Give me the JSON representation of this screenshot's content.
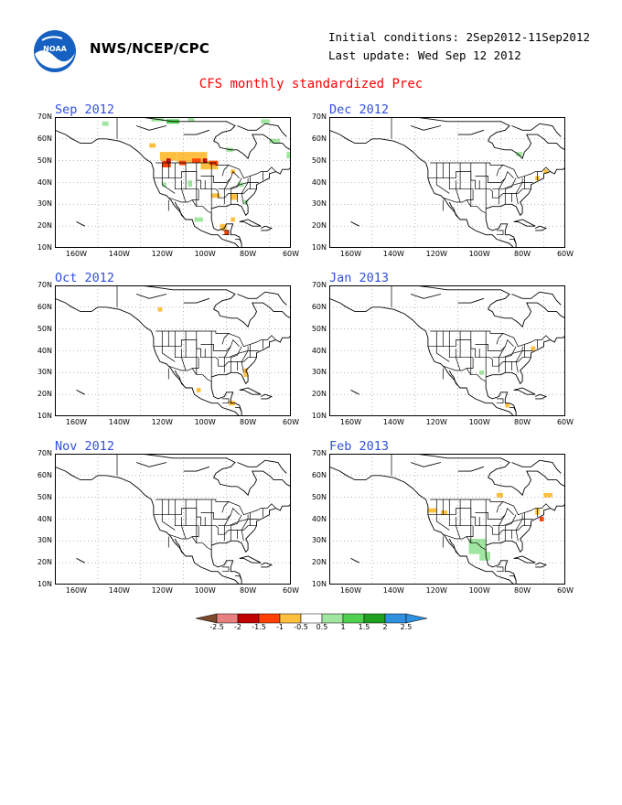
{
  "header": {
    "org": "NWS/NCEP/CPC",
    "initial_conditions": "Initial conditions: 2Sep2012-11Sep2012",
    "last_update": "Last update: Wed Sep 12 2012",
    "title": "CFS monthly standardized Prec",
    "logo_icon": "noaa-logo-icon"
  },
  "axes": {
    "y_ticks": [
      "70N",
      "60N",
      "50N",
      "40N",
      "30N",
      "20N",
      "10N"
    ],
    "x_ticks": [
      "160W",
      "140W",
      "120W",
      "100W",
      "80W",
      "60W"
    ]
  },
  "panels": [
    {
      "id": "sep",
      "title": "Sep 2012",
      "anomalies": [
        {
          "lon": -148,
          "lat": 66,
          "w": 3,
          "h": 2,
          "color": "#a0e6a0"
        },
        {
          "lon": -125,
          "lat": 68,
          "w": 6,
          "h": 2,
          "color": "#a0e6a0"
        },
        {
          "lon": -118,
          "lat": 67,
          "w": 6,
          "h": 2,
          "color": "#50d050"
        },
        {
          "lon": -108,
          "lat": 68,
          "w": 3,
          "h": 2,
          "color": "#a0e6a0"
        },
        {
          "lon": -74,
          "lat": 67,
          "w": 4,
          "h": 2,
          "color": "#a0e6a0"
        },
        {
          "lon": -70,
          "lat": 58,
          "w": 5,
          "h": 2,
          "color": "#a0e6a0"
        },
        {
          "lon": -62,
          "lat": 51,
          "w": 3,
          "h": 3,
          "color": "#a0e6a0"
        },
        {
          "lon": -90,
          "lat": 54,
          "w": 3,
          "h": 2,
          "color": "#a0e6a0"
        },
        {
          "lon": -126,
          "lat": 56,
          "w": 3,
          "h": 2,
          "color": "#ffc040"
        },
        {
          "lon": -121,
          "lat": 50,
          "w": 8,
          "h": 4,
          "color": "#ffc040"
        },
        {
          "lon": -113,
          "lat": 49,
          "w": 14,
          "h": 5,
          "color": "#ffc040"
        },
        {
          "lon": -102,
          "lat": 46,
          "w": 8,
          "h": 4,
          "color": "#ffc040"
        },
        {
          "lon": -120,
          "lat": 47,
          "w": 4,
          "h": 3,
          "color": "#ff4000"
        },
        {
          "lon": -112,
          "lat": 48,
          "w": 3,
          "h": 2,
          "color": "#ff4000"
        },
        {
          "lon": -106,
          "lat": 49,
          "w": 4,
          "h": 2,
          "color": "#ff4000"
        },
        {
          "lon": -98,
          "lat": 48,
          "w": 4,
          "h": 2,
          "color": "#ff4000"
        },
        {
          "lon": -118,
          "lat": 49,
          "w": 2,
          "h": 2,
          "color": "#c00000"
        },
        {
          "lon": -101,
          "lat": 49,
          "w": 2,
          "h": 2,
          "color": "#c00000"
        },
        {
          "lon": -88,
          "lat": 44,
          "w": 2,
          "h": 2,
          "color": "#ffc040"
        },
        {
          "lon": -97,
          "lat": 33,
          "w": 4,
          "h": 2,
          "color": "#ffc040"
        },
        {
          "lon": -88,
          "lat": 32,
          "w": 3,
          "h": 3,
          "color": "#ffc040"
        },
        {
          "lon": -82,
          "lat": 30,
          "w": 2,
          "h": 2,
          "color": "#a0e6a0"
        },
        {
          "lon": -85,
          "lat": 38,
          "w": 3,
          "h": 2,
          "color": "#a0e6a0"
        },
        {
          "lon": -108,
          "lat": 38,
          "w": 2,
          "h": 3,
          "color": "#a0e6a0"
        },
        {
          "lon": -120,
          "lat": 38,
          "w": 2,
          "h": 2,
          "color": "#a0e6a0"
        },
        {
          "lon": -105,
          "lat": 22,
          "w": 4,
          "h": 2,
          "color": "#a0e6a0"
        },
        {
          "lon": -93,
          "lat": 18,
          "w": 3,
          "h": 3,
          "color": "#ffc040"
        },
        {
          "lon": -91,
          "lat": 16,
          "w": 2,
          "h": 2,
          "color": "#ff4000"
        },
        {
          "lon": -88,
          "lat": 22,
          "w": 2,
          "h": 2,
          "color": "#ffc040"
        }
      ]
    },
    {
      "id": "dec",
      "title": "Dec 2012",
      "anomalies": [
        {
          "lon": -83,
          "lat": 52,
          "w": 3,
          "h": 2,
          "color": "#a0e6a0"
        },
        {
          "lon": -70,
          "lat": 44,
          "w": 2,
          "h": 2,
          "color": "#ffc040"
        },
        {
          "lon": -74,
          "lat": 41,
          "w": 2,
          "h": 2,
          "color": "#ffc040"
        }
      ]
    },
    {
      "id": "oct",
      "title": "Oct 2012",
      "anomalies": [
        {
          "lon": -122,
          "lat": 58,
          "w": 2,
          "h": 2,
          "color": "#ffc040"
        },
        {
          "lon": -82,
          "lat": 28,
          "w": 2,
          "h": 4,
          "color": "#ffc040"
        },
        {
          "lon": -104,
          "lat": 21,
          "w": 2,
          "h": 2,
          "color": "#ffc040"
        },
        {
          "lon": -89,
          "lat": 15,
          "w": 3,
          "h": 2,
          "color": "#ffc040"
        }
      ]
    },
    {
      "id": "jan",
      "title": "Jan 2013",
      "anomalies": [
        {
          "lon": -100,
          "lat": 29,
          "w": 2,
          "h": 2,
          "color": "#a0e6a0"
        },
        {
          "lon": -76,
          "lat": 40,
          "w": 2,
          "h": 2,
          "color": "#ffc040"
        },
        {
          "lon": -88,
          "lat": 14,
          "w": 2,
          "h": 2,
          "color": "#ffc040"
        }
      ]
    },
    {
      "id": "nov",
      "title": "Nov 2012",
      "anomalies": []
    },
    {
      "id": "feb",
      "title": "Feb 2013",
      "anomalies": [
        {
          "lon": -124,
          "lat": 43,
          "w": 4,
          "h": 2,
          "color": "#ffc040"
        },
        {
          "lon": -118,
          "lat": 42,
          "w": 3,
          "h": 2,
          "color": "#ffc040"
        },
        {
          "lon": -92,
          "lat": 50,
          "w": 3,
          "h": 2,
          "color": "#ffc040"
        },
        {
          "lon": -70,
          "lat": 50,
          "w": 4,
          "h": 2,
          "color": "#ffc040"
        },
        {
          "lon": -74,
          "lat": 42,
          "w": 2,
          "h": 3,
          "color": "#ffc040"
        },
        {
          "lon": -72,
          "lat": 39,
          "w": 2,
          "h": 2,
          "color": "#ff4000"
        },
        {
          "lon": -105,
          "lat": 24,
          "w": 8,
          "h": 7,
          "color": "#a0e6a0"
        },
        {
          "lon": -100,
          "lat": 21,
          "w": 5,
          "h": 4,
          "color": "#a0e6a0"
        }
      ]
    }
  ],
  "colorbar": {
    "labels": [
      "-2.5",
      "-2",
      "-1.5",
      "-1",
      "-0.5",
      "0.5",
      "1",
      "1.5",
      "2",
      "2.5"
    ],
    "colors": [
      "#7a4a2a",
      "#e88080",
      "#c00000",
      "#ff4000",
      "#ffc040",
      "#ffffff",
      "#a0e6a0",
      "#50d050",
      "#20a020",
      "#3090e0",
      "#3090e0"
    ]
  }
}
